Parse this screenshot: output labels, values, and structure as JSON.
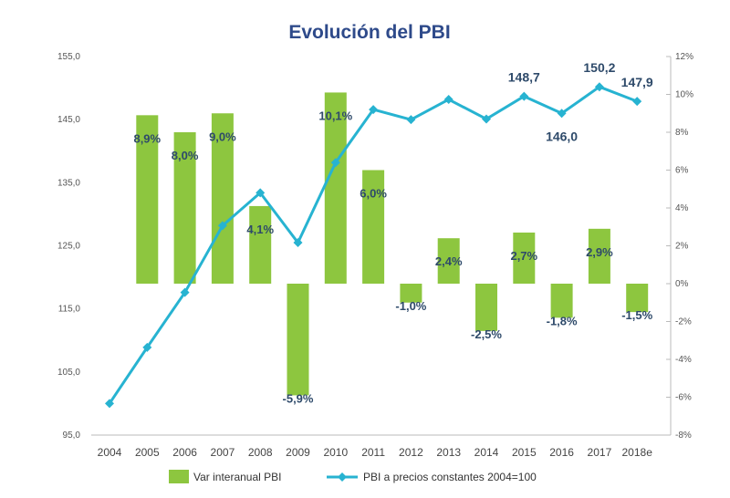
{
  "chart_data": {
    "type": "bar+line",
    "title": "Evolución del PBI",
    "categories": [
      "2004",
      "2005",
      "2006",
      "2007",
      "2008",
      "2009",
      "2010",
      "2011",
      "2012",
      "2013",
      "2014",
      "2015",
      "2016",
      "2017",
      "2018e"
    ],
    "series": [
      {
        "name": "Var interanual PBI",
        "type": "bar",
        "axis": "right",
        "color": "#8dc63f",
        "values": [
          null,
          8.9,
          8.0,
          9.0,
          4.1,
          -5.9,
          10.1,
          6.0,
          -1.0,
          2.4,
          -2.5,
          2.7,
          -1.8,
          2.9,
          -1.5
        ],
        "labels": [
          "",
          "8,9%",
          "8,0%",
          "9,0%",
          "4,1%",
          "-5,9%",
          "10,1%",
          "6,0%",
          "-1,0%",
          "2,4%",
          "-2,5%",
          "2,7%",
          "-1,8%",
          "2,9%",
          "-1,5%"
        ]
      },
      {
        "name": "PBI a precios constantes 2004=100",
        "type": "line",
        "axis": "left",
        "color": "#27b3d1",
        "values": [
          100.0,
          108.9,
          117.6,
          128.2,
          133.4,
          125.5,
          138.2,
          146.6,
          145.0,
          148.2,
          145.1,
          148.7,
          146.0,
          150.2,
          147.9
        ],
        "labels": [
          "",
          "",
          "",
          "",
          "",
          "",
          "",
          "",
          "",
          "",
          "",
          "148,7",
          "146,0",
          "150,2",
          "147,9"
        ]
      }
    ],
    "y_left": {
      "min": 95,
      "max": 155,
      "ticks": [
        "95,0",
        "105,0",
        "115,0",
        "125,0",
        "135,0",
        "145,0",
        "155,0"
      ],
      "tick_values": [
        95,
        105,
        115,
        125,
        135,
        145,
        155
      ]
    },
    "y_right": {
      "min": -8,
      "max": 12,
      "ticks": [
        "-8%",
        "-6%",
        "-4%",
        "-2%",
        "0%",
        "2%",
        "4%",
        "6%",
        "8%",
        "10%",
        "12%"
      ],
      "tick_values": [
        -8,
        -6,
        -4,
        -2,
        0,
        2,
        4,
        6,
        8,
        10,
        12
      ]
    },
    "legend": [
      "Var interanual PBI",
      "PBI a precios constantes 2004=100"
    ],
    "legend_position": "bottom",
    "grid": false
  }
}
